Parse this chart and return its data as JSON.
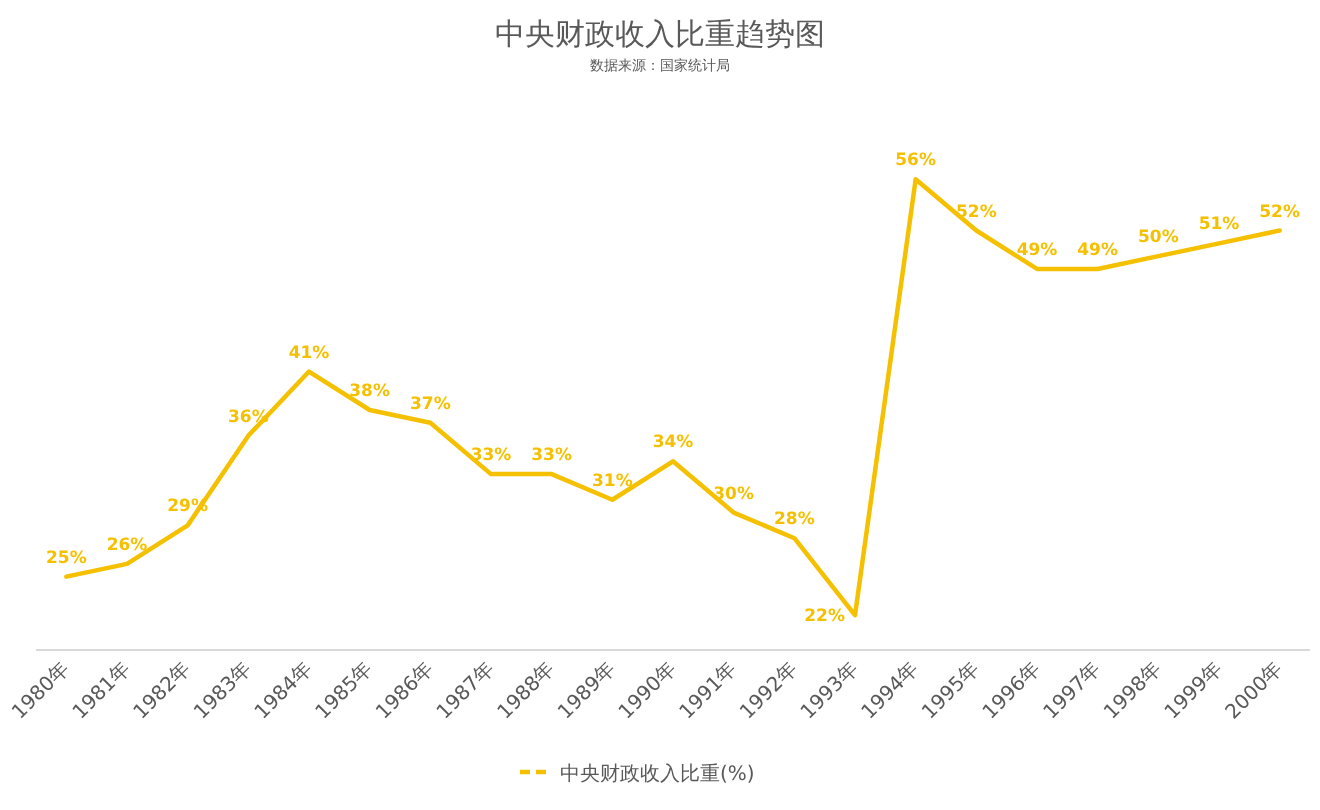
{
  "chart_data": {
    "type": "line",
    "title": "中央财政收入比重趋势图",
    "subtitle": "数据来源：国家统计局",
    "categories": [
      "1980年",
      "1981年",
      "1982年",
      "1983年",
      "1984年",
      "1985年",
      "1986年",
      "1987年",
      "1988年",
      "1989年",
      "1990年",
      "1991年",
      "1992年",
      "1993年",
      "1994年",
      "1995年",
      "1996年",
      "1997年",
      "1998年",
      "1999年",
      "2000年"
    ],
    "series": [
      {
        "name": "中央财政收入比重(%)",
        "color": "#f5c000",
        "values": [
          25,
          26,
          29,
          36,
          41,
          38,
          37,
          33,
          33,
          31,
          34,
          30,
          28,
          22,
          56,
          52,
          49,
          49,
          50,
          51,
          52
        ],
        "value_labels": [
          "25%",
          "26%",
          "29%",
          "36%",
          "41%",
          "38%",
          "37%",
          "33%",
          "33%",
          "31%",
          "34%",
          "30%",
          "28%",
          "22%",
          "56%",
          "52%",
          "49%",
          "49%",
          "50%",
          "51%",
          "52%"
        ]
      }
    ],
    "legend": "bottom",
    "grid": false,
    "marker": "none",
    "line_style": "solid"
  }
}
